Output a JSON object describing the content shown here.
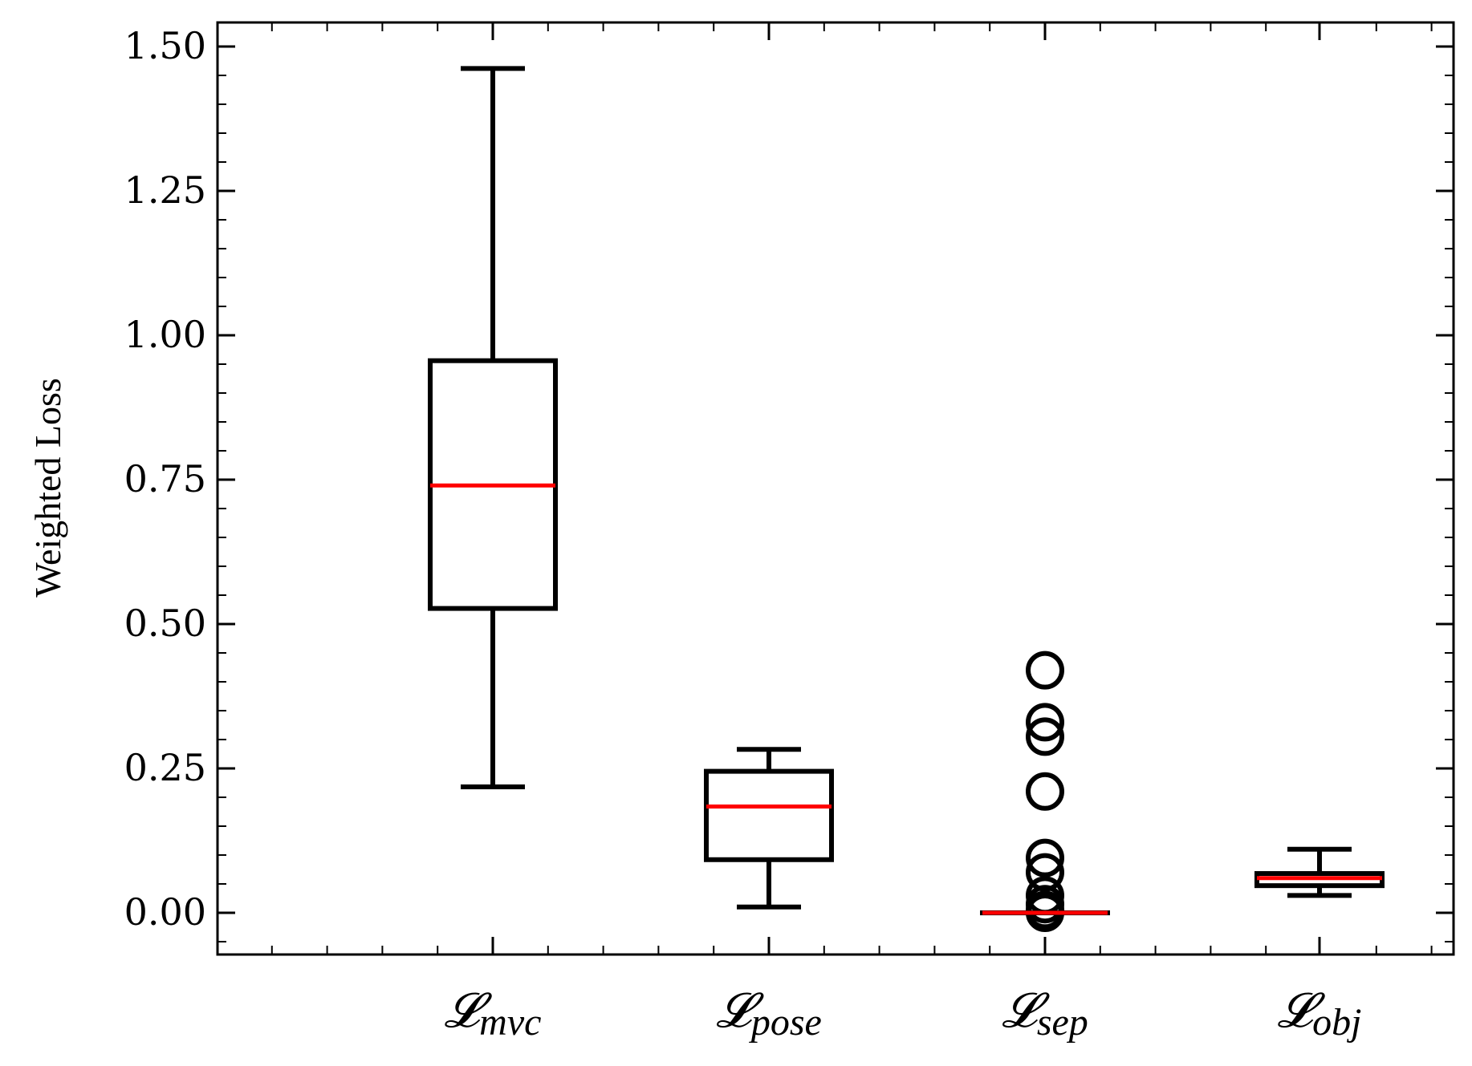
{
  "chart_data": {
    "type": "box",
    "ylabel": "Weighted Loss",
    "ylim": [
      -0.075,
      1.535
    ],
    "yticks": [
      0.0,
      0.25,
      0.5,
      0.75,
      1.0,
      1.25,
      1.5
    ],
    "ytick_labels": [
      "0.00",
      "0.25",
      "0.50",
      "0.75",
      "1.00",
      "1.25",
      "1.50"
    ],
    "grid": false,
    "categories": [
      {
        "main": "𝓛",
        "sub": "mvc"
      },
      {
        "main": "𝓛",
        "sub": "pose"
      },
      {
        "main": "𝓛",
        "sub": "sep"
      },
      {
        "main": "𝓛",
        "sub": "obj"
      }
    ],
    "boxes": [
      {
        "whisker_low": 0.218,
        "q1": 0.527,
        "median": 0.74,
        "q3": 0.956,
        "whisker_high": 1.462,
        "outliers": []
      },
      {
        "whisker_low": 0.01,
        "q1": 0.092,
        "median": 0.184,
        "q3": 0.245,
        "whisker_high": 0.283,
        "outliers": []
      },
      {
        "whisker_low": 0.0,
        "q1": 0.0,
        "median": 0.0,
        "q3": 0.0,
        "whisker_high": 0.0,
        "outliers": [
          0.42,
          0.33,
          0.305,
          0.21,
          0.095,
          0.07,
          0.03,
          0.015,
          0.005,
          0.0
        ]
      },
      {
        "whisker_low": 0.03,
        "q1": 0.047,
        "median": 0.06,
        "q3": 0.068,
        "whisker_high": 0.11,
        "outliers": []
      }
    ],
    "colors": {
      "box": "#000000",
      "median": "#ff0000",
      "axis": "#000000"
    }
  }
}
